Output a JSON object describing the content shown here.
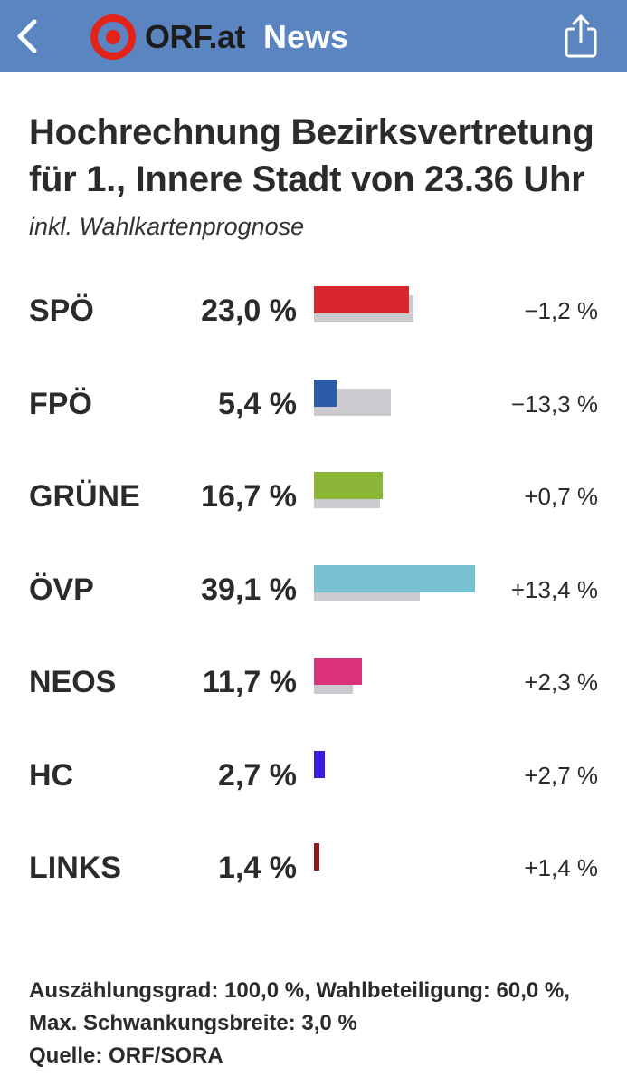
{
  "header": {
    "back_icon": "chevron-left-icon",
    "logo_icon": "orf-target-logo",
    "brand": "ORF.at",
    "section": "News",
    "share_icon": "share-icon"
  },
  "content": {
    "title_line1": "Hochrechnung Bezirksvertretung",
    "title_line2": "für 1., Innere Stadt von 23.36 Uhr",
    "subtitle": "inkl. Wahlkartenprognose"
  },
  "chart_data": {
    "type": "bar",
    "categories": [
      "SPÖ",
      "FPÖ",
      "GRÜNE",
      "ÖVP",
      "NEOS",
      "HC",
      "LINKS"
    ],
    "series": [
      {
        "values": [
          23.0,
          5.4,
          16.7,
          39.1,
          11.7,
          2.7,
          1.4
        ]
      },
      {
        "values": [
          24.2,
          18.7,
          16.0,
          25.7,
          9.4,
          0,
          0
        ]
      }
    ],
    "value_labels": [
      "23,0 %",
      "5,4 %",
      "16,7 %",
      "39,1 %",
      "11,7 %",
      "2,7 %",
      "1,4 %"
    ],
    "diff_labels": [
      "−1,2 %",
      "−13,3 %",
      "+0,7 %",
      "+13,4 %",
      "+2,3 %",
      "+2,7 %",
      "+1,4 %"
    ],
    "colors": [
      "#d8282d",
      "#2b5aa8",
      "#8bb637",
      "#79c2d1",
      "#d9327a",
      "#3a19e0",
      "#8c1c1c"
    ],
    "previous_color": "#cacacf",
    "xlim": [
      0,
      44
    ]
  },
  "footer": {
    "line1": "Auszählungsgrad: 100,0 %, Wahlbeteiligung: 60,0 %,",
    "line2": "Max. Schwankungsbreite: 3,0 %",
    "line3": "Quelle: ORF/SORA"
  }
}
